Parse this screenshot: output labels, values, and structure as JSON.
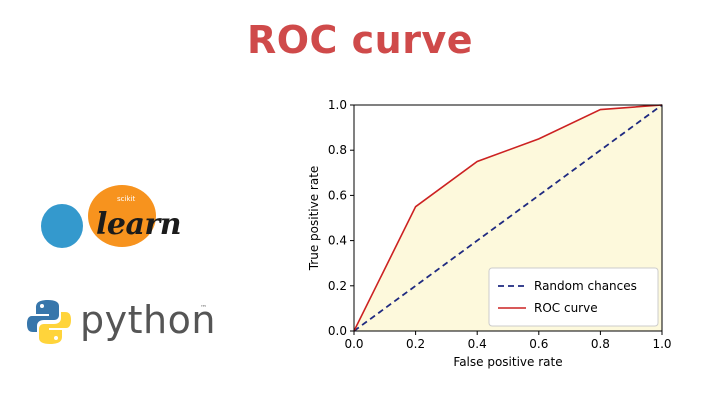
{
  "title": "ROC curve",
  "logos": {
    "sklearn": {
      "small": "scikit",
      "word": "learn"
    },
    "python": {
      "word": "python",
      "tm": "™"
    }
  },
  "colors": {
    "title": "#cf4a4a",
    "random": "#1f2a80",
    "roc": "#cc2222",
    "fill": "#fdf9dc",
    "sk_orange": "#f7931e",
    "sk_blue": "#3499cd",
    "py_blue": "#3776ab",
    "py_yellow": "#ffd43b"
  },
  "chart_data": {
    "type": "line",
    "xlabel": "False positive rate",
    "ylabel": "True positive rate",
    "xlim": [
      0,
      1
    ],
    "ylim": [
      0,
      1
    ],
    "xticks": [
      "0.0",
      "0.2",
      "0.4",
      "0.6",
      "0.8",
      "1.0"
    ],
    "yticks": [
      "0.0",
      "0.2",
      "0.4",
      "0.6",
      "0.8",
      "1.0"
    ],
    "grid": false,
    "legend_position": "bottom-right",
    "series": [
      {
        "name": "Random chances",
        "style": "dashed",
        "x": [
          0,
          1
        ],
        "y": [
          0,
          1
        ]
      },
      {
        "name": "ROC curve",
        "style": "solid",
        "fill_under": true,
        "x": [
          0,
          0.2,
          0.4,
          0.6,
          0.8,
          1.0
        ],
        "y": [
          0,
          0.55,
          0.75,
          0.85,
          0.98,
          1.0
        ]
      }
    ]
  }
}
